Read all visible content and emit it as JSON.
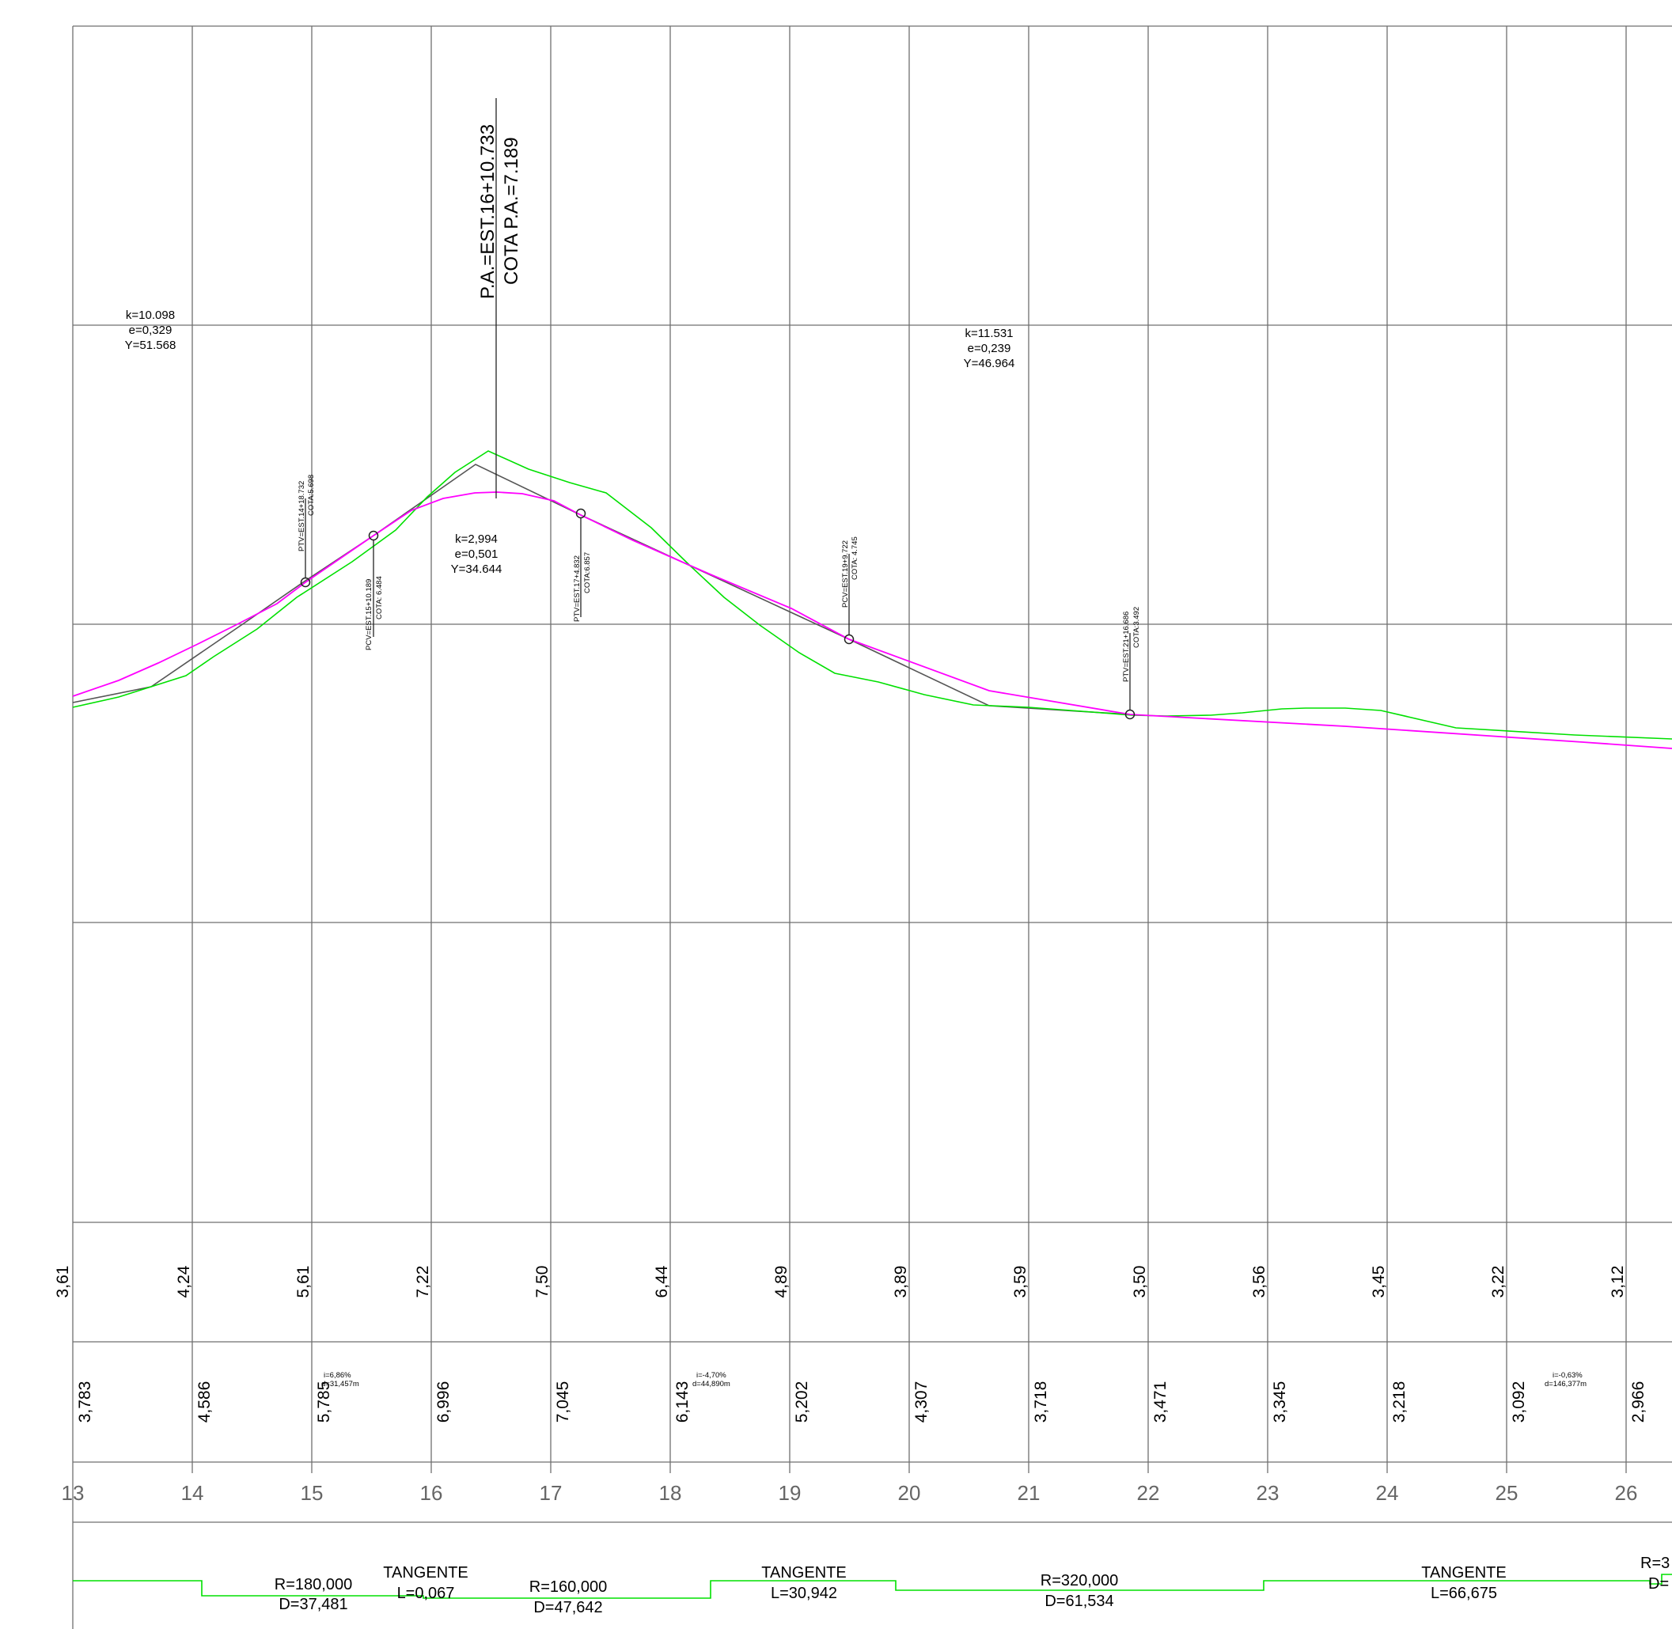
{
  "colors": {
    "terrain": "#00e000",
    "grade_line": "#ff00ff",
    "tangent_polygon": "#555555",
    "grid": "#6f6f6f"
  },
  "stations": [
    "13",
    "14",
    "15",
    "16",
    "17",
    "18",
    "19",
    "20",
    "21",
    "22",
    "23",
    "24",
    "25",
    "26"
  ],
  "terrain_elevations": [
    "3,61",
    "4,24",
    "5,61",
    "7,22",
    "7,50",
    "6,44",
    "4,89",
    "3,89",
    "3,59",
    "3,50",
    "3,56",
    "3,45",
    "3,22",
    "3,12"
  ],
  "grade_elevations": [
    "3,783",
    "4,586",
    "5,785",
    "6,996",
    "7,045",
    "6,143",
    "5,202",
    "4,307",
    "3,718",
    "3,471",
    "3,345",
    "3,218",
    "3,092",
    "2,966"
  ],
  "vertex": {
    "line1": "P.A.=EST.16+10.733",
    "line2": "COTA P.A.=7.189"
  },
  "curve_params": [
    {
      "k": "k=10.098",
      "e": "e=0,329",
      "y": "Y=51.568"
    },
    {
      "k": "k=2,994",
      "e": "e=0,501",
      "y": "Y=34.644"
    },
    {
      "k": "k=11.531",
      "e": "e=0,239",
      "y": "Y=46.964"
    }
  ],
  "curve_points": [
    {
      "l1": "PTV=EST.14+18.732",
      "l2": "COTA:5.698"
    },
    {
      "l1": "PCV=EST.15+10.189",
      "l2": "COTA: 6.484"
    },
    {
      "l1": "PTV=EST.17+4.832",
      "l2": "COTA:6.857"
    },
    {
      "l1": "PCV=EST.19+9.722",
      "l2": "COTA: 4.745"
    },
    {
      "l1": "PTV=EST.21+16.686",
      "l2": "COTA:3.492"
    }
  ],
  "slopes": [
    {
      "i": "i=6,86%",
      "d": "d=31,457m"
    },
    {
      "i": "i=-4,70%",
      "d": "d=44,890m"
    },
    {
      "i": "i=-0,63%",
      "d": "d=146,377m"
    }
  ],
  "alignment": [
    {
      "l1": "R=180,000",
      "l2": "D=37,481"
    },
    {
      "l1": "TANGENTE",
      "l2": "L=0,067"
    },
    {
      "l1": "R=160,000",
      "l2": "D=47,642"
    },
    {
      "l1": "TANGENTE",
      "l2": "L=30,942"
    },
    {
      "l1": "R=320,000",
      "l2": "D=61,534"
    },
    {
      "l1": "TANGENTE",
      "l2": "L=66,675"
    },
    {
      "l1": "R=3",
      "l2": "D="
    }
  ]
}
